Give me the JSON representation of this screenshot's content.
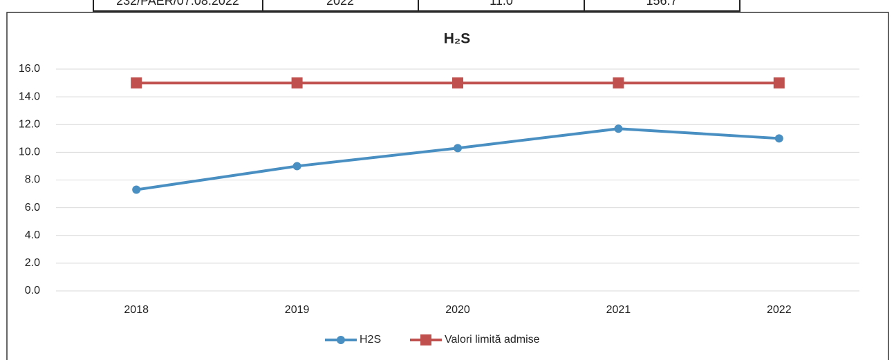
{
  "table_row": [
    "232/PAER/07.08.2022",
    "2022",
    "11.0",
    "156.7"
  ],
  "chart_data": {
    "type": "line",
    "title": "H₂S",
    "categories": [
      "2018",
      "2019",
      "2020",
      "2021",
      "2022"
    ],
    "series": [
      {
        "name": "H2S",
        "color": "#4a8fc2",
        "marker": "circle",
        "values": [
          7.3,
          9.0,
          10.3,
          11.7,
          11.0
        ]
      },
      {
        "name": "Valori limită admise",
        "color": "#c0504d",
        "marker": "square",
        "values": [
          15,
          15,
          15,
          15,
          15
        ]
      }
    ],
    "ylim": [
      0,
      16
    ],
    "yticks": [
      {
        "value": 0,
        "label": "0.0"
      },
      {
        "value": 2,
        "label": "2.0"
      },
      {
        "value": 4,
        "label": "4.0"
      },
      {
        "value": 6,
        "label": "6.0"
      },
      {
        "value": 8,
        "label": "8.0"
      },
      {
        "value": 10,
        "label": "10.0"
      },
      {
        "value": 12,
        "label": "12.0"
      },
      {
        "value": 14,
        "label": "14.0"
      },
      {
        "value": 16,
        "label": "16.0"
      }
    ],
    "grid": true,
    "legend": "bottom"
  }
}
